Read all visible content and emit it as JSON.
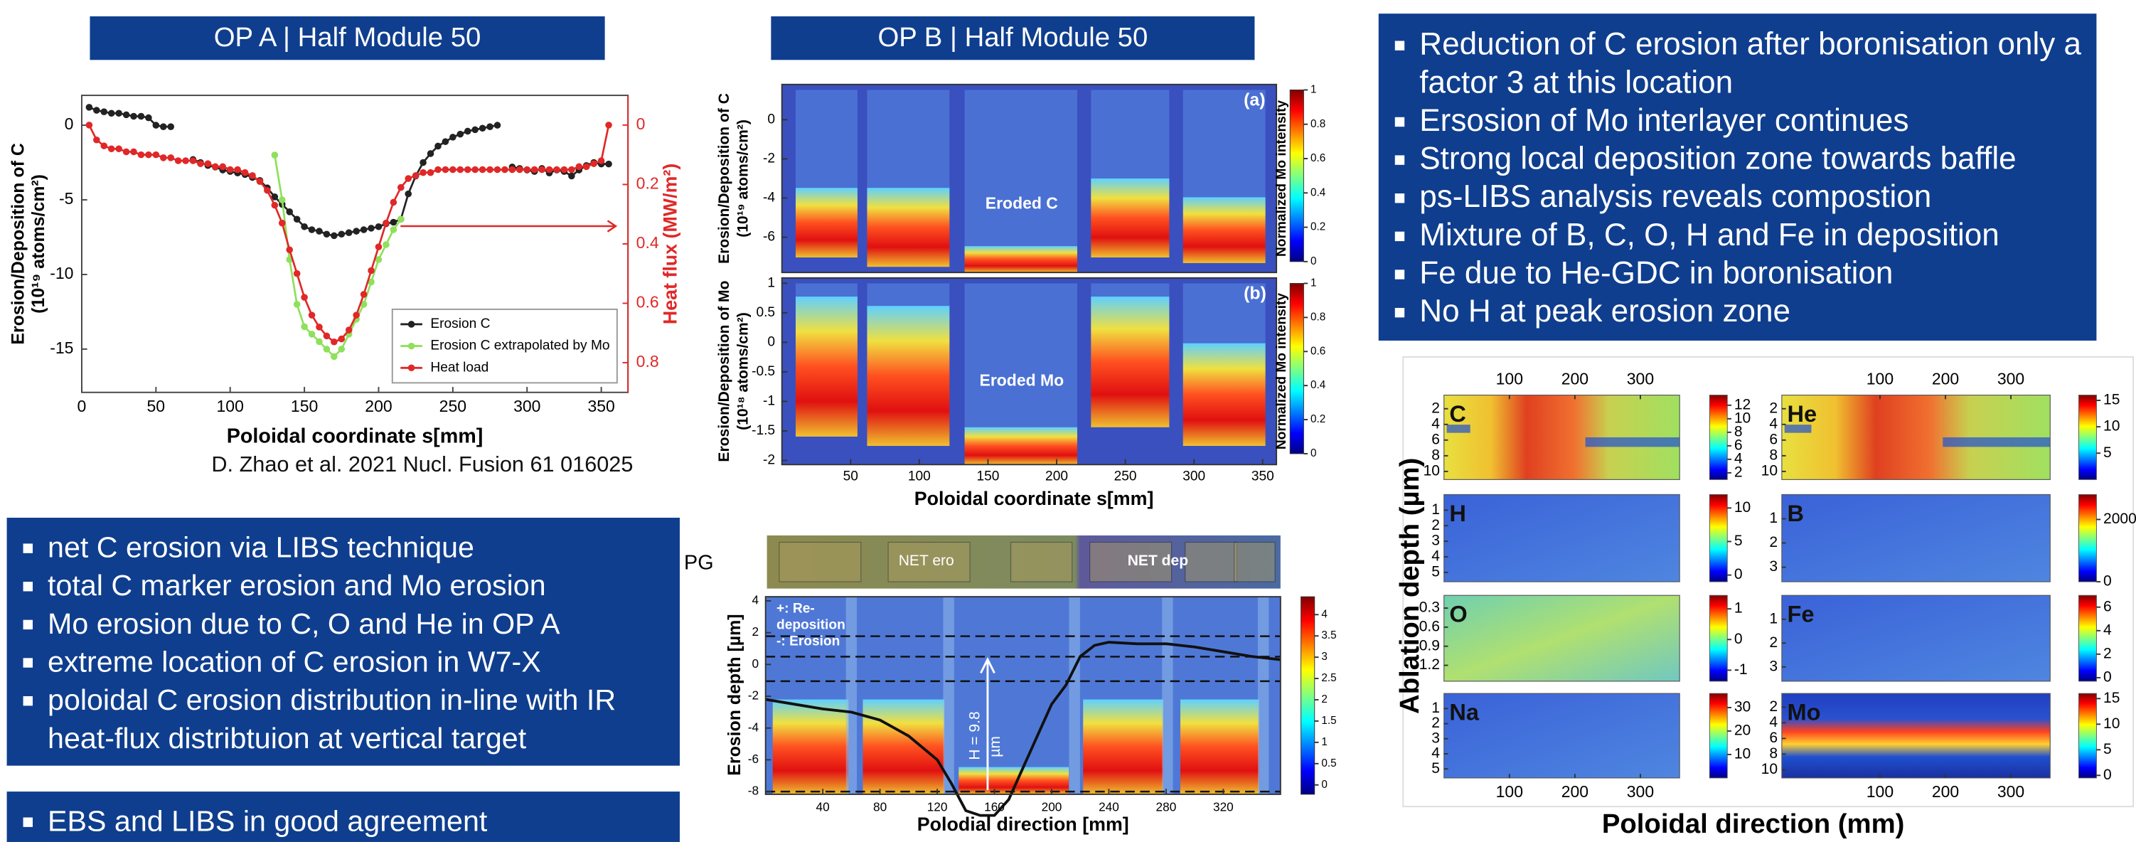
{
  "slide": {
    "header_a": "OP A | Half Module 50",
    "header_b": "OP B | Half Module 50",
    "citation": "D. Zhao et al. 2021 Nucl. Fusion 61 016025",
    "bullets_right": [
      "Reduction of C erosion after boronisation only a factor 3 at this location",
      "Ersosion of Mo interlayer continues",
      "Strong local deposition zone towards baffle",
      "ps-LIBS analysis reveals compostion",
      "Mixture of B, C, O, H and Fe in deposition",
      "Fe due to He-GDC in boronisation",
      "No H at peak erosion zone"
    ],
    "bullets_left": [
      "net C erosion via LIBS technique",
      "total C marker erosion and Mo erosion",
      "Mo erosion due to C, O and He in OP A",
      "extreme location of C erosion in W7-X",
      "poloidal C erosion distribution in-line with IR heat-flux distribtuion at vertical target"
    ],
    "bullets_bottom": [
      "EBS and LIBS in good agreement"
    ]
  },
  "chart_data": [
    {
      "type": "line",
      "ylabel": [
        "Erosion/Deposition of C",
        "(10¹⁹ atoms/cm²)"
      ],
      "y2label": "Heat flux (MW/m²)",
      "xlabel": "Poloidal coordinate s[mm]",
      "xlim": [
        0,
        368
      ],
      "xticks": [
        0,
        50,
        100,
        150,
        200,
        250,
        300,
        350
      ],
      "ylim": [
        -17.9,
        2
      ],
      "yticks": [
        0,
        -5,
        -10,
        -15
      ],
      "y2lim": [
        0.9,
        -0.1
      ],
      "y2ticks": [
        0,
        0.2,
        0.4,
        0.6,
        0.8
      ],
      "legend": "lower right",
      "x": [
        5,
        10,
        15,
        20,
        25,
        30,
        35,
        40,
        45,
        50,
        55,
        60,
        65,
        70,
        75,
        80,
        85,
        90,
        95,
        100,
        105,
        110,
        115,
        120,
        125,
        130,
        135,
        140,
        145,
        150,
        155,
        160,
        165,
        170,
        175,
        180,
        185,
        190,
        195,
        200,
        205,
        210,
        215,
        220,
        225,
        230,
        235,
        240,
        245,
        250,
        255,
        260,
        265,
        270,
        275,
        280,
        285,
        290,
        295,
        300,
        305,
        310,
        315,
        320,
        325,
        330,
        335,
        340,
        345,
        350,
        355
      ],
      "series": [
        {
          "name": "Erosion C",
          "color": "#222222",
          "values": [
            1.2,
            1.0,
            0.9,
            0.8,
            0.8,
            0.7,
            0.6,
            0.6,
            0.5,
            0.0,
            -0.1,
            -0.1,
            null,
            null,
            -2.3,
            -2.5,
            -2.7,
            -2.8,
            -3.0,
            -3.1,
            -3.2,
            -3.3,
            -3.5,
            -3.7,
            -4.2,
            -4.8,
            -5.3,
            -5.8,
            -6.3,
            -6.8,
            -7.0,
            -7.1,
            -7.3,
            -7.4,
            -7.3,
            -7.2,
            -7.1,
            -7.0,
            -6.9,
            -6.8,
            -6.6,
            -6.5,
            -6.3,
            -4.6,
            -3.4,
            -2.5,
            -1.9,
            -1.4,
            -1.1,
            -0.8,
            -0.6,
            -0.4,
            -0.3,
            -0.2,
            -0.1,
            0.0,
            null,
            -2.8,
            -2.9,
            -3.0,
            -3.1,
            -2.9,
            -3.2,
            -3.0,
            -3.1,
            -3.4,
            -3.0,
            -2.7,
            -2.5,
            -2.6,
            -2.6
          ]
        },
        {
          "name": "Erosion C extrapolated by Mo",
          "color": "#8fe05a",
          "values": [
            null,
            null,
            null,
            null,
            null,
            null,
            null,
            null,
            null,
            null,
            null,
            null,
            null,
            null,
            null,
            null,
            null,
            null,
            null,
            null,
            null,
            null,
            null,
            null,
            null,
            -2.0,
            -5.0,
            -9.0,
            -12.0,
            -13.5,
            -14.0,
            -14.5,
            -15.0,
            -15.5,
            -15.0,
            -14.0,
            -13.0,
            -12.0,
            -10.5,
            -9.0,
            -8.0,
            -7.0,
            -6.3,
            null,
            null,
            null,
            null,
            null,
            null,
            null,
            null,
            null,
            null,
            null,
            null,
            null,
            null,
            null,
            null,
            null,
            null,
            null,
            null,
            null,
            null,
            null,
            null,
            null,
            null,
            null,
            null
          ]
        },
        {
          "name": "Heat load",
          "color": "#e02828",
          "axis": "y2",
          "values": [
            0.0,
            0.05,
            0.07,
            0.08,
            0.08,
            0.09,
            0.09,
            0.1,
            0.1,
            0.1,
            0.11,
            0.11,
            0.12,
            0.12,
            0.12,
            0.13,
            0.13,
            0.14,
            0.14,
            0.15,
            0.15,
            0.16,
            0.17,
            0.19,
            0.22,
            0.27,
            0.33,
            0.42,
            0.5,
            0.58,
            0.64,
            0.68,
            0.71,
            0.73,
            0.72,
            0.69,
            0.64,
            0.57,
            0.49,
            0.41,
            0.33,
            0.26,
            0.21,
            0.18,
            0.17,
            0.16,
            0.16,
            0.15,
            0.15,
            0.15,
            0.15,
            0.15,
            0.15,
            0.15,
            0.15,
            0.15,
            0.15,
            0.15,
            0.15,
            0.15,
            0.15,
            0.15,
            0.15,
            0.15,
            0.15,
            0.15,
            0.14,
            0.14,
            0.13,
            0.12,
            0.0
          ]
        }
      ]
    },
    {
      "type": "heatmap-panels",
      "xlabel": "Poloidal coordinate s[mm]",
      "xlim": [
        0,
        360
      ],
      "xticks": [
        50,
        100,
        150,
        200,
        250,
        300,
        350
      ],
      "colorbar_label": "Normalized Mo intensity",
      "cblim": [
        0,
        1
      ],
      "cbticks": [
        0,
        0.2,
        0.4,
        0.6,
        0.8,
        1
      ],
      "panels": [
        {
          "label": "(a)",
          "annotation": "Eroded C",
          "ylabel": [
            "Erosion/Deposition of C",
            "(10¹⁹ atoms/cm²)"
          ],
          "ylim": [
            -7.8,
            1.8
          ],
          "yticks": [
            0,
            -2,
            -4,
            -6
          ]
        },
        {
          "label": "(b)",
          "annotation": "Eroded Mo",
          "ylabel": [
            "Erosion/Deposition of Mo",
            "(10¹⁸ atoms/cm²)"
          ],
          "ylim": [
            -2.07,
            1.09
          ],
          "yticks": [
            1,
            0.5,
            0,
            -0.5,
            -1,
            -1.5,
            -2
          ]
        }
      ]
    },
    {
      "type": "heatmap-line",
      "strip_label": "PG",
      "strip_annotations": [
        "NET ero",
        "NET dep"
      ],
      "ylabel": "Erosion depth [µm]",
      "xlabel": "Polodial direction [mm]",
      "xlim": [
        0,
        360
      ],
      "xticks": [
        40,
        80,
        120,
        160,
        200,
        240,
        280,
        320
      ],
      "ylim": [
        -8.17,
        4.26
      ],
      "yticks": [
        4,
        2,
        0,
        -2,
        -4,
        -6,
        -8
      ],
      "annotations": [
        "+: Re-",
        "deposition",
        "-: Erosion"
      ],
      "depth_label": [
        "H = 9.8",
        "µm"
      ],
      "cblim": [
        -0.22,
        4.42
      ],
      "cbticks": [
        0,
        0.5,
        1,
        1.5,
        2,
        2.5,
        3,
        3.5,
        4
      ],
      "x": [
        0,
        20,
        40,
        60,
        80,
        100,
        120,
        130,
        140,
        150,
        160,
        170,
        180,
        190,
        200,
        210,
        220,
        230,
        240,
        260,
        280,
        300,
        320,
        340,
        360
      ],
      "values": [
        -2.2,
        -2.5,
        -2.8,
        -3.0,
        -3.5,
        -4.5,
        -6,
        -7.5,
        -9.2,
        -9.5,
        -9.5,
        -8.5,
        -6.5,
        -4.5,
        -2.5,
        -1.3,
        0.5,
        1.2,
        1.4,
        1.3,
        1.3,
        1.1,
        0.8,
        0.5,
        0.3
      ]
    },
    {
      "type": "heatmap-grid",
      "ylabel": "Ablation depth (µm)",
      "xlabel": "Poloidal direction (mm)",
      "columns": [
        {
          "xlim": [
            0,
            360
          ],
          "xticks": [
            100,
            200,
            300
          ]
        },
        {
          "xlim": [
            -50,
            360
          ],
          "xticks": [
            100,
            200,
            300
          ]
        }
      ],
      "panels": [
        {
          "label": "C",
          "ylim": [
            0.26,
            11.04
          ],
          "yticks": [
            2,
            4,
            6,
            8,
            10
          ],
          "cblim": [
            1,
            13.5
          ],
          "cbticks": [
            12,
            10,
            8,
            6,
            4,
            2
          ]
        },
        {
          "label": "He",
          "ylim": [
            0.26,
            11.04
          ],
          "yticks": [
            2,
            4,
            6,
            8,
            10
          ],
          "cblim": [
            0,
            16
          ],
          "cbticks": [
            15,
            10,
            5
          ]
        },
        {
          "label": "H",
          "ylim": [
            0,
            5.6
          ],
          "yticks": [
            1,
            2,
            3,
            4,
            5
          ],
          "cblim": [
            -1,
            12
          ],
          "cbticks": [
            10,
            5,
            0
          ]
        },
        {
          "label": "B",
          "ylim": [
            0,
            3.6
          ],
          "yticks": [
            1,
            2,
            3
          ],
          "cblim": [
            0,
            2800
          ],
          "cbticks": [
            2000,
            0
          ]
        },
        {
          "label": "O",
          "ylim": [
            0.1,
            1.45
          ],
          "yticks": [
            0.3,
            0.6,
            0.9,
            1.2
          ],
          "cblim": [
            -1.36,
            1.44
          ],
          "cbticks": [
            1,
            0,
            -1
          ]
        },
        {
          "label": "Fe",
          "ylim": [
            0,
            3.6
          ],
          "yticks": [
            1,
            2,
            3
          ],
          "cblim": [
            -0.3,
            7
          ],
          "cbticks": [
            6,
            4,
            2,
            0
          ]
        },
        {
          "label": "Na",
          "ylim": [
            0,
            5.6
          ],
          "yticks": [
            1,
            2,
            3,
            4,
            5
          ],
          "cblim": [
            0,
            36
          ],
          "cbticks": [
            30,
            20,
            10
          ]
        },
        {
          "label": "Mo",
          "ylim": [
            0.26,
            11.04
          ],
          "yticks": [
            2,
            4,
            6,
            8,
            10
          ],
          "cblim": [
            -0.5,
            16
          ],
          "cbticks": [
            15,
            10,
            5,
            0
          ]
        }
      ]
    }
  ]
}
